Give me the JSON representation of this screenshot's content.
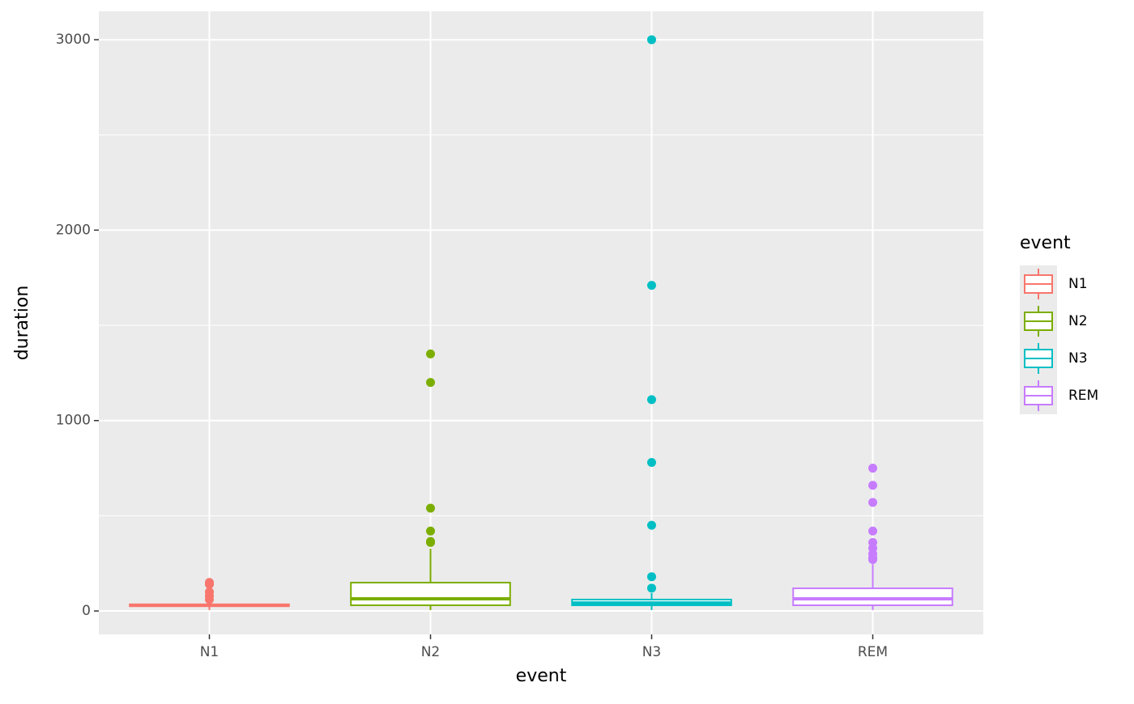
{
  "chart_data": {
    "type": "boxplot",
    "x_label": "event",
    "y_label": "duration",
    "legend_title": "event",
    "categories": [
      "N1",
      "N2",
      "N3",
      "REM"
    ],
    "colors": [
      "#F8766D",
      "#7CAE00",
      "#00BFC4",
      "#C77CFF"
    ],
    "boxes": [
      {
        "min": 5,
        "q1": 25,
        "median": 30,
        "q3": 35,
        "max": 50,
        "outliers": [
          150,
          140,
          100,
          80,
          60
        ]
      },
      {
        "min": 5,
        "q1": 30,
        "median": 64,
        "q3": 149,
        "max": 327,
        "outliers": [
          1350,
          1200,
          540,
          420,
          365,
          360
        ]
      },
      {
        "min": 5,
        "q1": 30,
        "median": 42,
        "q3": 60,
        "max": 94,
        "outliers": [
          3000,
          1710,
          1110,
          780,
          450,
          180,
          120
        ]
      },
      {
        "min": 5,
        "q1": 30,
        "median": 64,
        "q3": 119,
        "max": 246,
        "outliers": [
          750,
          660,
          570,
          420,
          360,
          330,
          300,
          280,
          270
        ]
      }
    ],
    "ylim": [
      -123,
      3149
    ],
    "yticks": [
      0,
      1000,
      2000,
      3000
    ],
    "minor_yticks": [
      500,
      1500,
      2500
    ],
    "grid": true,
    "legend": "right"
  }
}
